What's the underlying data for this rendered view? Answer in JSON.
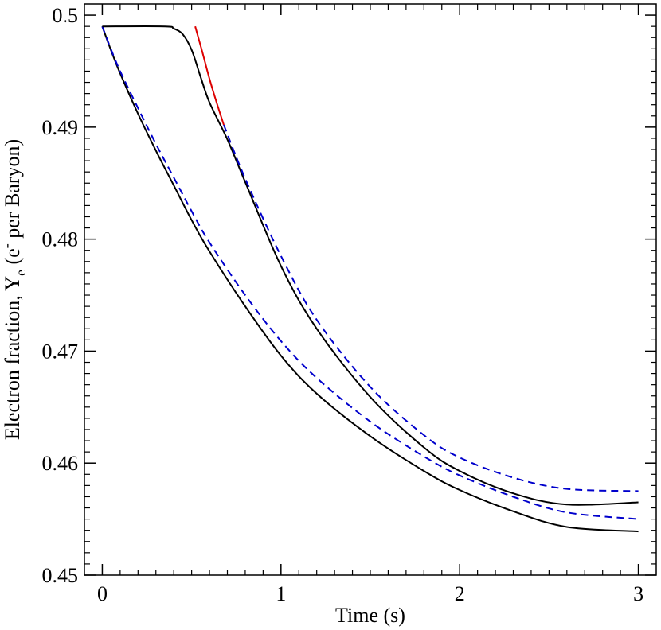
{
  "chart_data": {
    "type": "line",
    "xlabel": "Time (s)",
    "ylabel": {
      "main": "Electron fraction, Y",
      "sub": "e",
      "paren_open": " (e",
      "sup": "-",
      "paren_close": " per Baryon)"
    },
    "xlim": [
      -0.1,
      3.1
    ],
    "ylim": [
      0.45,
      0.501
    ],
    "xticks": [
      0,
      1,
      2,
      3
    ],
    "xtick_labels": [
      "0",
      "1",
      "2",
      "3"
    ],
    "yticks": [
      0.45,
      0.46,
      0.47,
      0.48,
      0.49,
      0.5
    ],
    "ytick_labels": [
      "0.45",
      "0.46",
      "0.47",
      "0.48",
      "0.49",
      "0.5"
    ],
    "grid": false,
    "legend": "none",
    "series": [
      {
        "color": "#000000",
        "dash": "solid",
        "x": [
          0,
          0.05,
          0.1,
          0.2,
          0.3,
          0.4,
          0.5,
          0.6,
          0.8,
          1.0,
          1.2,
          1.5,
          1.8,
          2.0,
          2.3,
          2.6,
          3.0
        ],
        "y": [
          0.499,
          0.4968,
          0.4948,
          0.4912,
          0.4879,
          0.4848,
          0.4817,
          0.4789,
          0.474,
          0.4696,
          0.4662,
          0.4624,
          0.4593,
          0.4576,
          0.4557,
          0.4543,
          0.4539
        ]
      },
      {
        "color": "#0000cc",
        "dash": "dashed",
        "x": [
          0,
          0.05,
          0.1,
          0.2,
          0.3,
          0.4,
          0.5,
          0.6,
          0.8,
          1.0,
          1.2,
          1.5,
          1.8,
          2.0,
          2.3,
          2.6,
          3.0
        ],
        "y": [
          0.499,
          0.4969,
          0.495,
          0.4917,
          0.4885,
          0.4855,
          0.4825,
          0.4797,
          0.475,
          0.4709,
          0.4676,
          0.4637,
          0.4606,
          0.4589,
          0.457,
          0.4556,
          0.455
        ]
      },
      {
        "color": "#000000",
        "dash": "solid",
        "x": [
          0,
          0.35,
          0.4,
          0.45,
          0.5,
          0.55,
          0.6,
          0.7,
          0.8,
          1.0,
          1.2,
          1.5,
          1.8,
          2.0,
          2.3,
          2.6,
          3.0
        ],
        "y": [
          0.499,
          0.499,
          0.4988,
          0.4983,
          0.4969,
          0.4945,
          0.4922,
          0.4889,
          0.4851,
          0.4776,
          0.472,
          0.4659,
          0.4614,
          0.4593,
          0.4573,
          0.4563,
          0.4565
        ]
      },
      {
        "color": "#0000cc",
        "dash": "dashed",
        "x": [
          0.68,
          0.8,
          1.0,
          1.2,
          1.5,
          1.8,
          2.0,
          2.3,
          2.6,
          3.0
        ],
        "y": [
          0.4902,
          0.4854,
          0.4785,
          0.4728,
          0.4668,
          0.4625,
          0.4605,
          0.4587,
          0.4577,
          0.4575
        ]
      },
      {
        "color": "#dd0000",
        "dash": "solid",
        "x": [
          0.52,
          0.56,
          0.6,
          0.64,
          0.68
        ],
        "y": [
          0.499,
          0.4967,
          0.4943,
          0.4922,
          0.4902
        ]
      }
    ]
  }
}
